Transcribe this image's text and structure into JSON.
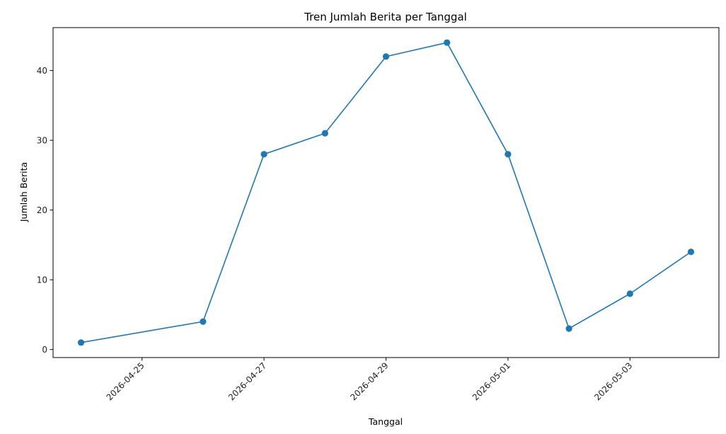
{
  "chart_data": {
    "type": "line",
    "title": "Tren Jumlah Berita per Tanggal",
    "xlabel": "Tanggal",
    "ylabel": "Jumlah Berita",
    "series": [
      {
        "x": [
          "2026-04-24",
          "2026-04-26",
          "2026-04-27",
          "2026-04-28",
          "2026-04-29",
          "2026-04-30",
          "2026-05-01",
          "2026-05-02",
          "2026-05-03",
          "2026-05-04"
        ],
        "values": [
          1,
          4,
          28,
          31,
          42,
          44,
          28,
          3,
          8,
          14
        ]
      }
    ],
    "xlim": [
      "2026-04-23T13:00",
      "2026-05-04T11:00"
    ],
    "ylim": [
      -1.15,
      46.15
    ],
    "x_ticks": [
      "2026-04-25",
      "2026-04-27",
      "2026-04-29",
      "2026-05-01",
      "2026-05-03"
    ],
    "y_ticks": [
      0,
      10,
      20,
      30,
      40
    ],
    "marker": "circle",
    "line_color": "#1f77b4",
    "grid": false
  }
}
